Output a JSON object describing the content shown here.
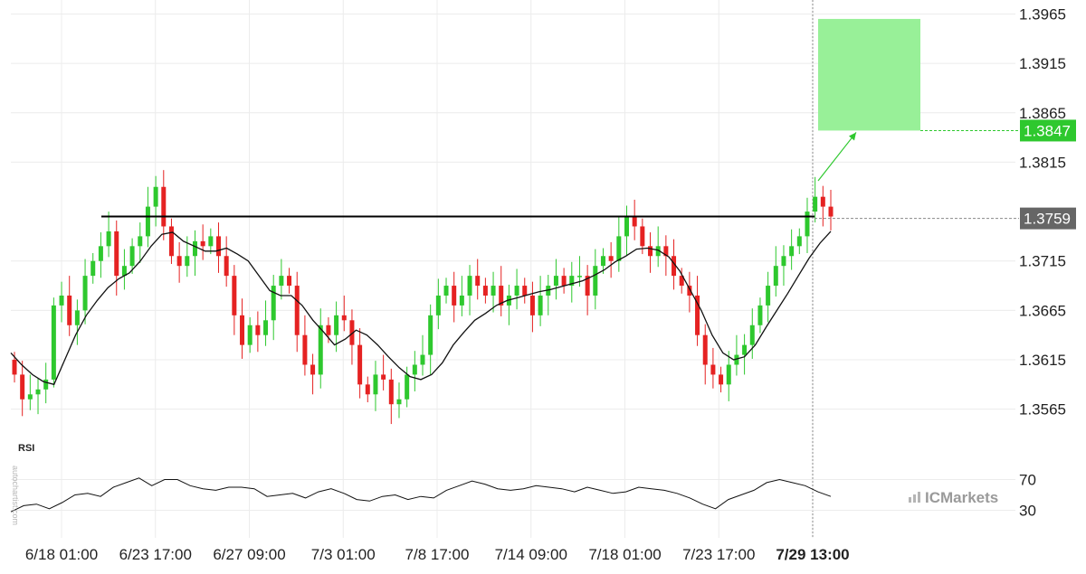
{
  "chart_data": {
    "type": "candlestick",
    "instrument_note": "",
    "price_axis": {
      "ticks": [
        "1.3965",
        "1.3915",
        "1.3865",
        "1.3815",
        "1.3715",
        "1.3665",
        "1.3615",
        "1.3565"
      ],
      "range": [
        1.354,
        1.397
      ]
    },
    "time_axis": {
      "ticks": [
        "6/18 01:00",
        "6/23 17:00",
        "6/27 09:00",
        "7/3 01:00",
        "7/8 17:00",
        "7/14 09:00",
        "7/18 01:00",
        "7/23 17:00",
        "7/29 13:00"
      ],
      "highlighted_tick": "7/29 13:00"
    },
    "resistance_level": 1.376,
    "current_price": "1.3759",
    "target_price": "1.3847",
    "target_zone": {
      "low": 1.3847,
      "high": 1.396
    },
    "close_series": [
      1.36,
      1.3575,
      1.358,
      1.3585,
      1.3595,
      1.367,
      1.368,
      1.365,
      1.3665,
      1.37,
      1.3715,
      1.373,
      1.3745,
      1.37,
      1.371,
      1.373,
      1.374,
      1.377,
      1.379,
      1.375,
      1.372,
      1.371,
      1.372,
      1.3735,
      1.373,
      1.374,
      1.372,
      1.37,
      1.366,
      1.363,
      1.365,
      1.364,
      1.3655,
      1.369,
      1.37,
      1.369,
      1.364,
      1.361,
      1.36,
      1.365,
      1.364,
      1.366,
      1.3655,
      1.363,
      1.359,
      1.358,
      1.36,
      1.3595,
      1.357,
      1.3575,
      1.36,
      1.361,
      1.362,
      1.366,
      1.368,
      1.369,
      1.367,
      1.368,
      1.37,
      1.369,
      1.368,
      1.369,
      1.367,
      1.368,
      1.369,
      1.368,
      1.366,
      1.368,
      1.369,
      1.37,
      1.369,
      1.37,
      1.37,
      1.368,
      1.371,
      1.372,
      1.3715,
      1.374,
      1.376,
      1.375,
      1.373,
      1.372,
      1.373,
      1.372,
      1.37,
      1.369,
      1.368,
      1.364,
      1.361,
      1.36,
      1.359,
      1.361,
      1.362,
      1.363,
      1.365,
      1.367,
      1.369,
      1.371,
      1.372,
      1.373,
      1.374,
      1.3765,
      1.378,
      1.377,
      1.376
    ],
    "moving_average_series": [
      1.3622,
      1.361,
      1.36,
      1.3593,
      1.359,
      1.3615,
      1.364,
      1.366,
      1.3675,
      1.3688,
      1.3697,
      1.3703,
      1.3715,
      1.373,
      1.3742,
      1.3744,
      1.3735,
      1.373,
      1.3725,
      1.3725,
      1.3728,
      1.3722,
      1.3715,
      1.37,
      1.3685,
      1.368,
      1.368,
      1.367,
      1.3655,
      1.3643,
      1.363,
      1.3636,
      1.3645,
      1.364,
      1.363,
      1.3618,
      1.3607,
      1.3598,
      1.3595,
      1.36,
      1.3612,
      1.363,
      1.3643,
      1.3655,
      1.3662,
      1.367,
      1.3675,
      1.3678,
      1.3681,
      1.3684,
      1.3686,
      1.3689,
      1.3692,
      1.3695,
      1.37,
      1.3706,
      1.3714,
      1.372,
      1.3727,
      1.3728,
      1.3726,
      1.3719,
      1.3705,
      1.3685,
      1.3665,
      1.364,
      1.3622,
      1.3615,
      1.3618,
      1.363,
      1.3648,
      1.3665,
      1.3682,
      1.37,
      1.3718,
      1.3733,
      1.3745
    ],
    "rsi": {
      "label": "RSI",
      "levels": [
        "70",
        "30"
      ],
      "values": [
        28,
        36,
        38,
        32,
        40,
        50,
        52,
        48,
        60,
        66,
        72,
        62,
        70,
        70,
        62,
        58,
        56,
        60,
        60,
        58,
        48,
        50,
        52,
        46,
        54,
        58,
        52,
        44,
        42,
        48,
        50,
        44,
        48,
        46,
        56,
        62,
        68,
        64,
        58,
        56,
        58,
        62,
        60,
        58,
        54,
        60,
        56,
        52,
        54,
        60,
        58,
        56,
        52,
        46,
        38,
        32,
        44,
        50,
        56,
        66,
        70,
        66,
        62,
        54,
        48
      ]
    },
    "grid": true,
    "legend": "none"
  },
  "labels": {
    "rsi": "RSI",
    "brand": "ICMarkets",
    "watermark": "autochartist.com"
  },
  "colors": {
    "bull": "#2ec82e",
    "bear": "#e52222",
    "target_zone": "#98f098",
    "target_badge": "#2ec82e",
    "current_badge": "#666666",
    "resistance": "#000000"
  }
}
